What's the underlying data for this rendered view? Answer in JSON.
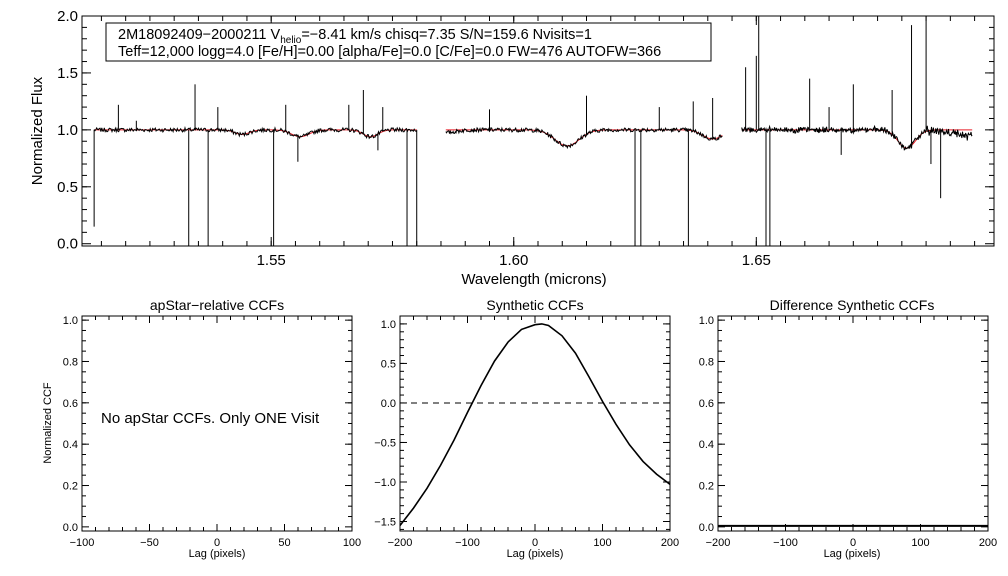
{
  "chart_data": [
    {
      "id": "spectrum",
      "type": "line",
      "title": "",
      "xlabel": "Wavelength (microns)",
      "ylabel": "Normalized Flux",
      "xlim": [
        1.511,
        1.699
      ],
      "ylim": [
        -0.02,
        2.0
      ],
      "xticks": [
        1.55,
        1.6,
        1.65
      ],
      "xtick_labels": [
        "1.55",
        "1.60",
        "1.65"
      ],
      "yticks": [
        0.0,
        0.5,
        1.0,
        1.5,
        2.0
      ],
      "ytick_labels": [
        "0.0",
        "0.5",
        "1.0",
        "1.5",
        "2.0"
      ],
      "info_box": {
        "line1_star": "2M18092409−2000211",
        "line1_v": "V",
        "line1_v_sub": "helio",
        "line1_rest": "=−8.41 km/s  chisq=7.35  S/N=159.6  Nvisits=1",
        "line2": "Teff=12,000 logg=4.0 [Fe/H]=0.00 [alpha/Fe]=0.0 [C/Fe]=0.0 FW=476 AUTOFW=366"
      },
      "chips": [
        [
          1.5135,
          1.58
        ],
        [
          1.586,
          1.643
        ],
        [
          1.647,
          1.6945
        ]
      ],
      "continuum": 1.0,
      "absorption_features": [
        {
          "center": 1.544,
          "depth": 0.04,
          "width": 0.0015
        },
        {
          "center": 1.556,
          "depth": 0.06,
          "width": 0.0018
        },
        {
          "center": 1.5705,
          "depth": 0.06,
          "width": 0.0015
        },
        {
          "center": 1.611,
          "depth": 0.14,
          "width": 0.0025
        },
        {
          "center": 1.641,
          "depth": 0.08,
          "width": 0.002
        },
        {
          "center": 1.681,
          "depth": 0.16,
          "width": 0.0018
        }
      ],
      "series": [
        {
          "name": "observed",
          "color": "#000000"
        },
        {
          "name": "model",
          "color": "#e8202a"
        }
      ]
    },
    {
      "id": "apstar_ccf",
      "type": "line",
      "title": "apStar−relative CCFs",
      "xlabel": "Lag (pixels)",
      "ylabel": "Normalized CCF",
      "xlim": [
        -100,
        100
      ],
      "ylim": [
        -0.02,
        1.02
      ],
      "xticks": [
        -100,
        -50,
        0,
        50,
        100
      ],
      "xtick_labels": [
        "−100",
        "−50",
        "0",
        "50",
        "100"
      ],
      "yticks": [
        0.0,
        0.2,
        0.4,
        0.6,
        0.8,
        1.0
      ],
      "ytick_labels": [
        "0.0",
        "0.2",
        "0.4",
        "0.6",
        "0.8",
        "1.0"
      ],
      "annotation": "No apStar CCFs.  Only ONE Visit",
      "series": []
    },
    {
      "id": "synthetic_ccf",
      "type": "line",
      "title": "Synthetic CCFs",
      "xlabel": "Lag (pixels)",
      "ylabel": "",
      "xlim": [
        -200,
        200
      ],
      "ylim": [
        -1.62,
        1.1
      ],
      "xticks": [
        -200,
        -100,
        0,
        100,
        200
      ],
      "xtick_labels": [
        "−200",
        "−100",
        "0",
        "100",
        "200"
      ],
      "yticks": [
        -1.5,
        -1.0,
        -0.5,
        0.0,
        0.5,
        1.0
      ],
      "ytick_labels": [
        "−1.5",
        "−1.0",
        "−0.5",
        "0.0",
        "0.5",
        "1.0"
      ],
      "reference_line": 0.0,
      "series": [
        {
          "name": "synthetic CCF",
          "color": "#000000",
          "x": [
            -200,
            -180,
            -160,
            -140,
            -120,
            -100,
            -80,
            -60,
            -40,
            -20,
            0,
            10,
            20,
            40,
            60,
            80,
            100,
            120,
            140,
            160,
            180,
            200
          ],
          "y": [
            -1.55,
            -1.33,
            -1.08,
            -0.79,
            -0.47,
            -0.12,
            0.22,
            0.53,
            0.77,
            0.93,
            0.99,
            1.0,
            0.98,
            0.85,
            0.63,
            0.33,
            0.02,
            -0.27,
            -0.53,
            -0.74,
            -0.9,
            -1.03
          ]
        }
      ]
    },
    {
      "id": "difference_ccf",
      "type": "line",
      "title": "Difference Synthetic CCFs",
      "xlabel": "Lag (pixels)",
      "ylabel": "",
      "xlim": [
        -200,
        200
      ],
      "ylim": [
        -0.02,
        1.02
      ],
      "xticks": [
        -200,
        -100,
        0,
        100,
        200
      ],
      "xtick_labels": [
        "−200",
        "−100",
        "0",
        "100",
        "200"
      ],
      "yticks": [
        0.0,
        0.2,
        0.4,
        0.6,
        0.8,
        1.0
      ],
      "ytick_labels": [
        "0.0",
        "0.2",
        "0.4",
        "0.6",
        "0.8",
        "1.0"
      ],
      "series": [
        {
          "name": "difference CCF",
          "color": "#000000",
          "x": [
            -200,
            200
          ],
          "y": [
            0.0,
            0.0
          ]
        }
      ]
    }
  ]
}
